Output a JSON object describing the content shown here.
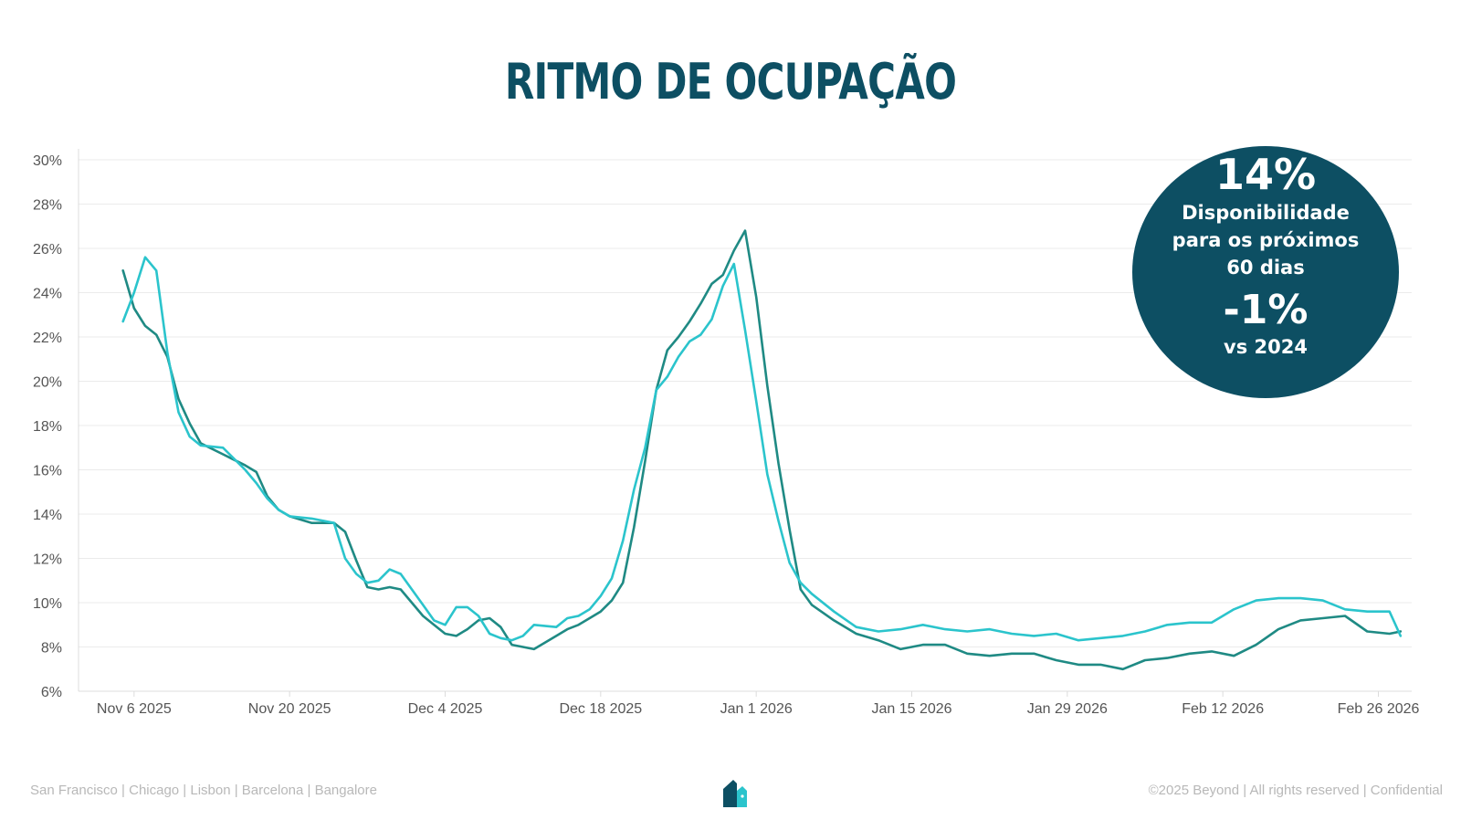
{
  "title": "RITMO DE OCUPAÇÃO",
  "badge": {
    "value": "14%",
    "label": "Disponibilidade para os próximos 60 dias",
    "change": "-1%",
    "comparison": "vs 2024"
  },
  "footer": {
    "locations": "San Francisco | Chicago | Lisbon | Barcelona | Bangalore",
    "copyright": "©2025 Beyond | All rights reserved | Confidential"
  },
  "colors": {
    "title": "#0d4f63",
    "badge": "#0d4f63",
    "series_dark": "#1f8a84",
    "series_light": "#2bc4cc",
    "logo_dark": "#0d4f63",
    "logo_light": "#2bc4cc"
  },
  "icons": {
    "logo": "house-logo-icon"
  },
  "chart_data": {
    "type": "line",
    "x_type": "date",
    "xlim": [
      "2025-11-01",
      "2026-03-01"
    ],
    "x_ticks": [
      "2025-11-06",
      "2025-11-20",
      "2025-12-04",
      "2025-12-18",
      "2026-01-01",
      "2026-01-15",
      "2026-01-29",
      "2026-02-12",
      "2026-02-26"
    ],
    "x_tick_labels": [
      "Nov 6 2025",
      "Nov 20 2025",
      "Dec 4 2025",
      "Dec 18 2025",
      "Jan 1 2026",
      "Jan 15 2026",
      "Jan 29 2026",
      "Feb 12 2026",
      "Feb 26 2026"
    ],
    "ylim": [
      6,
      30
    ],
    "y_ticks": [
      6,
      8,
      10,
      12,
      14,
      16,
      18,
      20,
      22,
      24,
      26,
      28,
      30
    ],
    "y_tick_labels": [
      "6%",
      "8%",
      "10%",
      "12%",
      "14%",
      "16%",
      "18%",
      "20%",
      "22%",
      "24%",
      "26%",
      "28%",
      "30%"
    ],
    "grid": true,
    "legend": "none",
    "series": [
      {
        "color": "#1f8a84",
        "x": [
          "2025-11-05",
          "2025-11-06",
          "2025-11-07",
          "2025-11-08",
          "2025-11-09",
          "2025-11-10",
          "2025-11-11",
          "2025-11-12",
          "2025-11-14",
          "2025-11-16",
          "2025-11-17",
          "2025-11-18",
          "2025-11-19",
          "2025-11-20",
          "2025-11-22",
          "2025-11-24",
          "2025-11-25",
          "2025-11-26",
          "2025-11-27",
          "2025-11-28",
          "2025-11-29",
          "2025-11-30",
          "2025-12-02",
          "2025-12-03",
          "2025-12-04",
          "2025-12-05",
          "2025-12-06",
          "2025-12-07",
          "2025-12-08",
          "2025-12-09",
          "2025-12-10",
          "2025-12-11",
          "2025-12-12",
          "2025-12-14",
          "2025-12-15",
          "2025-12-16",
          "2025-12-17",
          "2025-12-18",
          "2025-12-19",
          "2025-12-20",
          "2025-12-21",
          "2025-12-22",
          "2025-12-23",
          "2025-12-24",
          "2025-12-25",
          "2025-12-26",
          "2025-12-27",
          "2025-12-28",
          "2025-12-29",
          "2025-12-30",
          "2025-12-31",
          "2026-01-01",
          "2026-01-02",
          "2026-01-03",
          "2026-01-04",
          "2026-01-05",
          "2026-01-06",
          "2026-01-08",
          "2026-01-10",
          "2026-01-12",
          "2026-01-14",
          "2026-01-16",
          "2026-01-18",
          "2026-01-20",
          "2026-01-22",
          "2026-01-24",
          "2026-01-26",
          "2026-01-28",
          "2026-01-30",
          "2026-02-01",
          "2026-02-03",
          "2026-02-05",
          "2026-02-07",
          "2026-02-09",
          "2026-02-11",
          "2026-02-13",
          "2026-02-15",
          "2026-02-17",
          "2026-02-19",
          "2026-02-21",
          "2026-02-23",
          "2026-02-25",
          "2026-02-27",
          "2026-02-28"
        ],
        "values": [
          25.0,
          23.3,
          22.5,
          22.1,
          21.1,
          19.2,
          18.1,
          17.2,
          16.7,
          16.2,
          15.9,
          14.8,
          14.2,
          13.9,
          13.6,
          13.6,
          13.2,
          11.9,
          10.7,
          10.6,
          10.7,
          10.6,
          9.4,
          9.0,
          8.6,
          8.5,
          8.8,
          9.2,
          9.3,
          8.9,
          8.1,
          8.0,
          7.9,
          8.5,
          8.8,
          9.0,
          9.3,
          9.6,
          10.1,
          10.9,
          13.4,
          16.4,
          19.6,
          21.4,
          22.0,
          22.7,
          23.5,
          24.4,
          24.8,
          25.9,
          26.8,
          23.8,
          19.8,
          16.3,
          13.3,
          10.6,
          9.9,
          9.2,
          8.6,
          8.3,
          7.9,
          8.1,
          8.1,
          7.7,
          7.6,
          7.7,
          7.7,
          7.4,
          7.2,
          7.2,
          7.0,
          7.4,
          7.5,
          7.7,
          7.8,
          7.6,
          8.1,
          8.8,
          9.2,
          9.3,
          9.4,
          8.7,
          8.6,
          8.7
        ]
      },
      {
        "color": "#2bc4cc",
        "x": [
          "2025-11-05",
          "2025-11-06",
          "2025-11-07",
          "2025-11-08",
          "2025-11-09",
          "2025-11-10",
          "2025-11-11",
          "2025-11-12",
          "2025-11-14",
          "2025-11-16",
          "2025-11-17",
          "2025-11-18",
          "2025-11-19",
          "2025-11-20",
          "2025-11-22",
          "2025-11-24",
          "2025-11-25",
          "2025-11-26",
          "2025-11-27",
          "2025-11-28",
          "2025-11-29",
          "2025-11-30",
          "2025-12-02",
          "2025-12-03",
          "2025-12-04",
          "2025-12-05",
          "2025-12-06",
          "2025-12-07",
          "2025-12-08",
          "2025-12-09",
          "2025-12-10",
          "2025-12-11",
          "2025-12-12",
          "2025-12-14",
          "2025-12-15",
          "2025-12-16",
          "2025-12-17",
          "2025-12-18",
          "2025-12-19",
          "2025-12-20",
          "2025-12-21",
          "2025-12-22",
          "2025-12-23",
          "2025-12-24",
          "2025-12-25",
          "2025-12-26",
          "2025-12-27",
          "2025-12-28",
          "2025-12-29",
          "2025-12-30",
          "2025-12-31",
          "2026-01-01",
          "2026-01-02",
          "2026-01-03",
          "2026-01-04",
          "2026-01-05",
          "2026-01-06",
          "2026-01-08",
          "2026-01-10",
          "2026-01-12",
          "2026-01-14",
          "2026-01-16",
          "2026-01-18",
          "2026-01-20",
          "2026-01-22",
          "2026-01-24",
          "2026-01-26",
          "2026-01-28",
          "2026-01-30",
          "2026-02-01",
          "2026-02-03",
          "2026-02-05",
          "2026-02-07",
          "2026-02-09",
          "2026-02-11",
          "2026-02-13",
          "2026-02-15",
          "2026-02-17",
          "2026-02-19",
          "2026-02-21",
          "2026-02-23",
          "2026-02-25",
          "2026-02-27",
          "2026-02-28"
        ],
        "values": [
          22.7,
          24.0,
          25.6,
          25.0,
          21.3,
          18.6,
          17.5,
          17.1,
          17.0,
          16.0,
          15.4,
          14.7,
          14.2,
          13.9,
          13.8,
          13.6,
          12.0,
          11.3,
          10.9,
          11.0,
          11.5,
          11.3,
          9.9,
          9.2,
          9.0,
          9.8,
          9.8,
          9.4,
          8.6,
          8.4,
          8.3,
          8.5,
          9.0,
          8.9,
          9.3,
          9.4,
          9.7,
          10.3,
          11.1,
          12.8,
          15.1,
          17.0,
          19.6,
          20.2,
          21.1,
          21.8,
          22.1,
          22.8,
          24.3,
          25.3,
          22.3,
          19.1,
          15.8,
          13.7,
          11.8,
          10.9,
          10.4,
          9.6,
          8.9,
          8.7,
          8.8,
          9.0,
          8.8,
          8.7,
          8.8,
          8.6,
          8.5,
          8.6,
          8.3,
          8.4,
          8.5,
          8.7,
          9.0,
          9.1,
          9.1,
          9.7,
          10.1,
          10.2,
          10.2,
          10.1,
          9.7,
          9.6,
          9.6,
          8.5
        ]
      }
    ]
  }
}
